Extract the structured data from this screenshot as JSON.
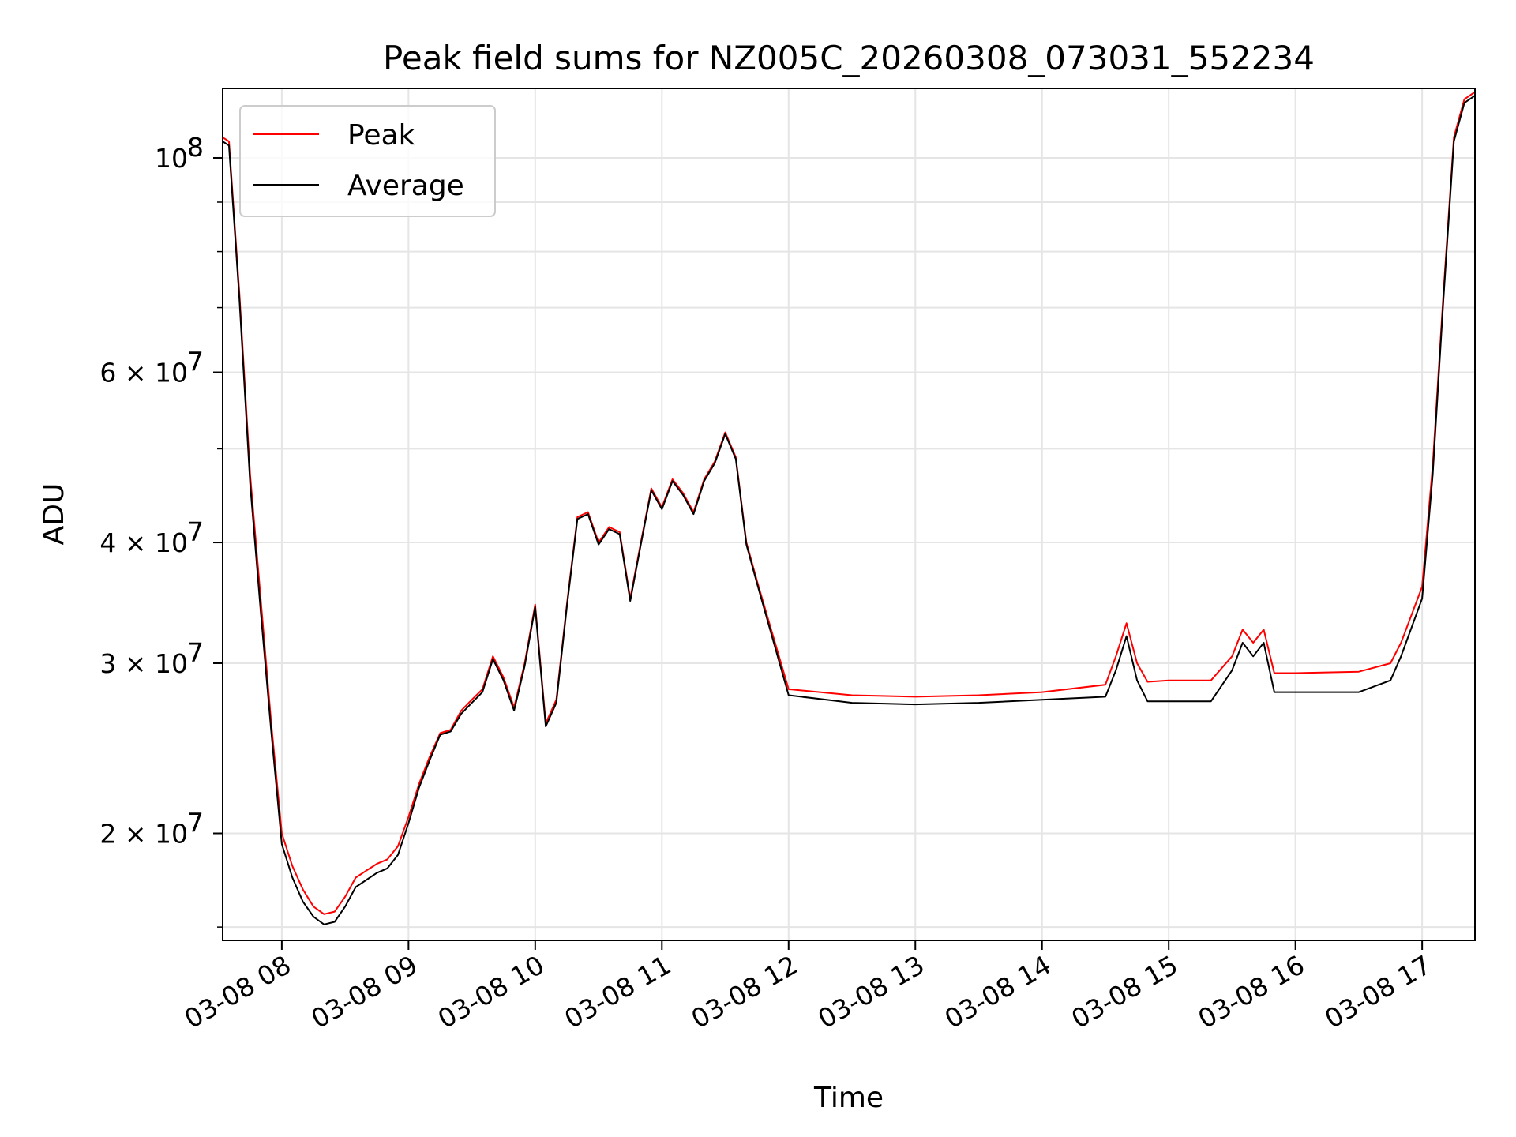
{
  "chart_data": {
    "type": "line",
    "title": "Peak field sums for NZ005C_20260308_073031_552234",
    "xlabel": "Time",
    "ylabel": "ADU",
    "x_range": [
      "03-08 07:32",
      "03-08 17:25"
    ],
    "ylim": [
      15500000,
      118000000
    ],
    "yscale": "log",
    "grid": true,
    "legend_position": "upper-left",
    "x_ticks": [
      "03-08 08",
      "03-08 09",
      "03-08 10",
      "03-08 11",
      "03-08 12",
      "03-08 13",
      "03-08 14",
      "03-08 15",
      "03-08 16",
      "03-08 17"
    ],
    "y_ticks": [
      {
        "value": 100000000,
        "label": "10",
        "exp": "8"
      },
      {
        "value": 60000000,
        "label": "6 × 10",
        "exp": "7"
      },
      {
        "value": 40000000,
        "label": "4 × 10",
        "exp": "7"
      },
      {
        "value": 30000000,
        "label": "3 × 10",
        "exp": "7"
      },
      {
        "value": 20000000,
        "label": "2 × 10",
        "exp": "7"
      }
    ],
    "series": [
      {
        "name": "Peak",
        "color": "#ff0000",
        "x": [
          "07:32",
          "07:35",
          "07:40",
          "07:45",
          "07:50",
          "07:55",
          "08:00",
          "08:05",
          "08:10",
          "08:15",
          "08:20",
          "08:25",
          "08:30",
          "08:35",
          "08:40",
          "08:45",
          "08:50",
          "08:55",
          "09:00",
          "09:05",
          "09:10",
          "09:15",
          "09:20",
          "09:25",
          "09:30",
          "09:35",
          "09:40",
          "09:45",
          "09:50",
          "09:55",
          "10:00",
          "10:05",
          "10:10",
          "10:15",
          "10:20",
          "10:25",
          "10:30",
          "10:35",
          "10:40",
          "10:45",
          "10:50",
          "10:55",
          "11:00",
          "11:05",
          "11:10",
          "11:15",
          "11:20",
          "11:25",
          "11:30",
          "11:35",
          "11:40",
          "11:45",
          "12:00",
          "12:30",
          "13:00",
          "13:30",
          "14:00",
          "14:30",
          "14:35",
          "14:40",
          "14:45",
          "14:50",
          "15:00",
          "15:20",
          "15:30",
          "15:35",
          "15:40",
          "15:45",
          "15:50",
          "16:00",
          "16:30",
          "16:45",
          "16:50",
          "17:00",
          "17:05",
          "17:10",
          "17:15",
          "17:20",
          "17:25"
        ],
        "y": [
          105000000,
          104000000,
          72000000,
          47000000,
          35000000,
          26000000,
          20000000,
          18500000,
          17500000,
          16800000,
          16500000,
          16600000,
          17200000,
          18000000,
          18300000,
          18600000,
          18800000,
          19400000,
          20800000,
          22500000,
          24000000,
          25400000,
          25600000,
          26800000,
          27500000,
          28200000,
          30500000,
          29000000,
          27000000,
          30000000,
          34500000,
          26000000,
          27500000,
          34500000,
          42500000,
          43000000,
          40000000,
          41500000,
          41000000,
          35000000,
          40000000,
          45500000,
          43500000,
          46500000,
          45000000,
          43000000,
          46500000,
          48500000,
          52000000,
          49000000,
          40000000,
          36500000,
          28200000,
          27800000,
          27700000,
          27800000,
          28000000,
          28500000,
          30500000,
          33000000,
          30000000,
          28700000,
          28800000,
          28800000,
          30500000,
          32500000,
          31500000,
          32500000,
          29300000,
          29300000,
          29400000,
          30000000,
          31500000,
          36000000,
          48000000,
          72000000,
          105000000,
          115000000,
          117000000
        ]
      },
      {
        "name": "Average",
        "color": "#000000",
        "x": [
          "07:32",
          "07:35",
          "07:40",
          "07:45",
          "07:50",
          "07:55",
          "08:00",
          "08:05",
          "08:10",
          "08:15",
          "08:20",
          "08:25",
          "08:30",
          "08:35",
          "08:40",
          "08:45",
          "08:50",
          "08:55",
          "09:00",
          "09:05",
          "09:10",
          "09:15",
          "09:20",
          "09:25",
          "09:30",
          "09:35",
          "09:40",
          "09:45",
          "09:50",
          "09:55",
          "10:00",
          "10:05",
          "10:10",
          "10:15",
          "10:20",
          "10:25",
          "10:30",
          "10:35",
          "10:40",
          "10:45",
          "10:50",
          "10:55",
          "11:00",
          "11:05",
          "11:10",
          "11:15",
          "11:20",
          "11:25",
          "11:30",
          "11:35",
          "11:40",
          "11:45",
          "12:00",
          "12:30",
          "13:00",
          "13:30",
          "14:00",
          "14:30",
          "14:35",
          "14:40",
          "14:45",
          "14:50",
          "15:00",
          "15:20",
          "15:30",
          "15:35",
          "15:40",
          "15:45",
          "15:50",
          "16:00",
          "16:30",
          "16:45",
          "16:50",
          "17:00",
          "17:05",
          "17:10",
          "17:15",
          "17:20",
          "17:25"
        ],
        "y": [
          104000000,
          103000000,
          71000000,
          46000000,
          34000000,
          25500000,
          19500000,
          18000000,
          17000000,
          16400000,
          16100000,
          16200000,
          16800000,
          17600000,
          17900000,
          18200000,
          18400000,
          19000000,
          20500000,
          22300000,
          23800000,
          25300000,
          25500000,
          26600000,
          27300000,
          28000000,
          30300000,
          28800000,
          26800000,
          29800000,
          34300000,
          25800000,
          27300000,
          34300000,
          42300000,
          42800000,
          39800000,
          41300000,
          40800000,
          34800000,
          39800000,
          45300000,
          43300000,
          46300000,
          44800000,
          42800000,
          46300000,
          48300000,
          51800000,
          48800000,
          39800000,
          36300000,
          27800000,
          27300000,
          27200000,
          27300000,
          27500000,
          27700000,
          29500000,
          32000000,
          28800000,
          27400000,
          27400000,
          27400000,
          29500000,
          31500000,
          30500000,
          31500000,
          28000000,
          28000000,
          28000000,
          28800000,
          30500000,
          35000000,
          47000000,
          71000000,
          104000000,
          114000000,
          116000000
        ]
      }
    ]
  }
}
